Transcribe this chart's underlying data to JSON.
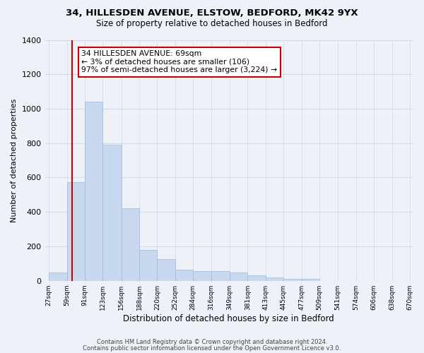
{
  "title1": "34, HILLESDEN AVENUE, ELSTOW, BEDFORD, MK42 9YX",
  "title2": "Size of property relative to detached houses in Bedford",
  "xlabel": "Distribution of detached houses by size in Bedford",
  "ylabel": "Number of detached properties",
  "bar_left_edges": [
    27,
    59,
    91,
    123,
    156,
    188,
    220,
    252,
    284,
    316,
    349,
    381,
    413,
    445,
    477,
    509,
    541,
    574,
    606,
    638
  ],
  "bar_heights": [
    50,
    575,
    1040,
    790,
    420,
    180,
    125,
    65,
    55,
    55,
    50,
    30,
    20,
    10,
    10,
    0,
    0,
    0,
    0,
    0
  ],
  "bar_widths": [
    32,
    32,
    32,
    33,
    32,
    32,
    32,
    32,
    32,
    33,
    32,
    32,
    32,
    32,
    32,
    32,
    32,
    33,
    32,
    32
  ],
  "bar_color": "#c8d9ef",
  "bar_edge_color": "#9fb8d8",
  "ylim": [
    0,
    1400
  ],
  "yticks": [
    0,
    200,
    400,
    600,
    800,
    1000,
    1200,
    1400
  ],
  "xtick_labels": [
    "27sqm",
    "59sqm",
    "91sqm",
    "123sqm",
    "156sqm",
    "188sqm",
    "220sqm",
    "252sqm",
    "284sqm",
    "316sqm",
    "349sqm",
    "381sqm",
    "413sqm",
    "445sqm",
    "477sqm",
    "509sqm",
    "541sqm",
    "574sqm",
    "606sqm",
    "638sqm",
    "670sqm"
  ],
  "xtick_positions": [
    27,
    59,
    91,
    123,
    156,
    188,
    220,
    252,
    284,
    316,
    349,
    381,
    413,
    445,
    477,
    509,
    541,
    574,
    606,
    638,
    670
  ],
  "property_line_x": 69,
  "annotation_line1": "34 HILLESDEN AVENUE: 69sqm",
  "annotation_line2": "← 3% of detached houses are smaller (106)",
  "annotation_line3": "97% of semi-detached houses are larger (3,224) →",
  "annotation_box_color": "#ffffff",
  "annotation_box_edge": "#cc0000",
  "property_line_color": "#cc0000",
  "footer1": "Contains HM Land Registry data © Crown copyright and database right 2024.",
  "footer2": "Contains public sector information licensed under the Open Government Licence v3.0.",
  "bg_color": "#eef2f8",
  "grid_color": "#d0d8e8",
  "title_fontsize": 9.5,
  "subtitle_fontsize": 8.5,
  "xlabel_fontsize": 8.5,
  "ylabel_fontsize": 8.0,
  "ytick_fontsize": 8.0,
  "xtick_fontsize": 6.5,
  "annotation_fontsize": 7.8,
  "footer_fontsize": 6.0
}
